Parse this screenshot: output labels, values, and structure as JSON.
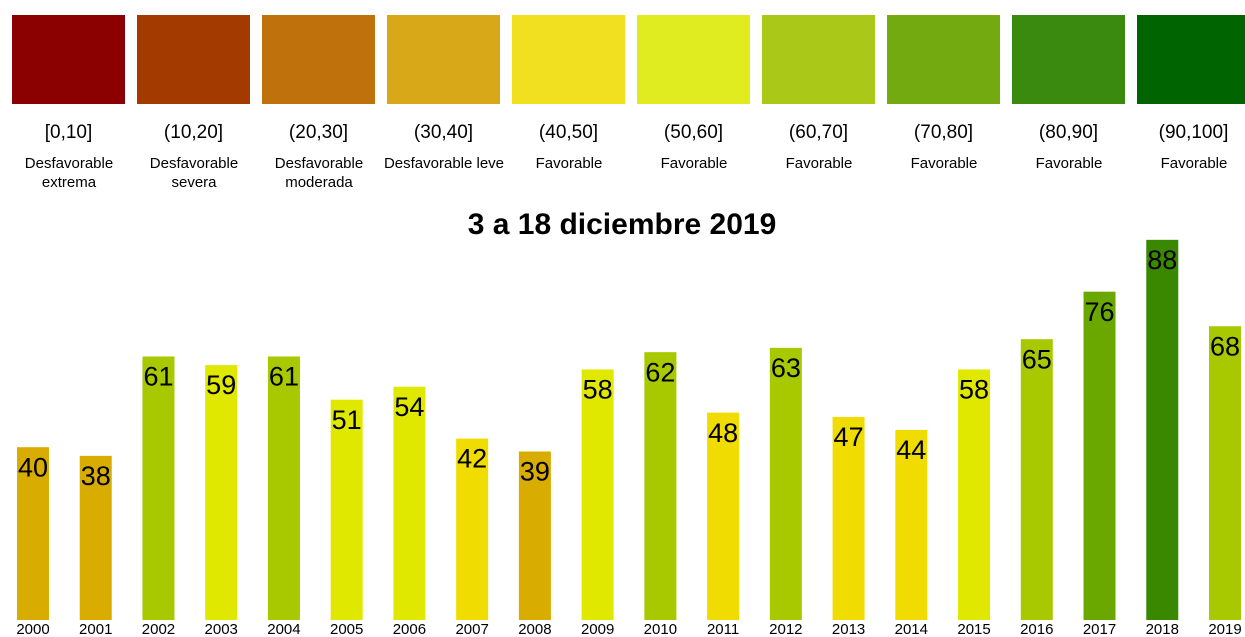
{
  "chart_data": {
    "type": "bar",
    "title": "3 a 18 diciembre 2019",
    "legend_bins": [
      {
        "range": "[0,10]",
        "text": "Desfavorable extrema",
        "color": "#8b0000"
      },
      {
        "range": "(10,20]",
        "text": "Desfavorable severa",
        "color": "#a33a00"
      },
      {
        "range": "(20,30]",
        "text": "Desfavorable moderada",
        "color": "#bf720c"
      },
      {
        "range": "(30,40]",
        "text": "Desfavorable leve",
        "color": "#d8a818"
      },
      {
        "range": "(40,50]",
        "text": "Favorable",
        "color": "#f0e020"
      },
      {
        "range": "(50,60]",
        "text": "Favorable",
        "color": "#e0ec20"
      },
      {
        "range": "(60,70]",
        "text": "Favorable",
        "color": "#aac818"
      },
      {
        "range": "(70,80]",
        "text": "Favorable",
        "color": "#72aa10"
      },
      {
        "range": "(80,90]",
        "text": "Favorable",
        "color": "#3a8a10"
      },
      {
        "range": "(90,100]",
        "text": "Favorable",
        "color": "#006400"
      }
    ],
    "categories": [
      "2000",
      "2001",
      "2002",
      "2003",
      "2004",
      "2005",
      "2006",
      "2007",
      "2008",
      "2009",
      "2010",
      "2011",
      "2012",
      "2013",
      "2014",
      "2015",
      "2016",
      "2017",
      "2018",
      "2019"
    ],
    "values": [
      40,
      38,
      61,
      59,
      61,
      51,
      54,
      42,
      39,
      58,
      62,
      48,
      63,
      47,
      44,
      58,
      65,
      76,
      88,
      68
    ],
    "colors": [
      "#d8ac00",
      "#d8ac00",
      "#a8c800",
      "#e0e800",
      "#a8c800",
      "#e0e800",
      "#e0e800",
      "#f0dc00",
      "#d8ac00",
      "#e0e800",
      "#a8c800",
      "#f0dc00",
      "#a8c800",
      "#f0dc00",
      "#f0dc00",
      "#e0e800",
      "#a8c800",
      "#6aa800",
      "#3a8800",
      "#a8c800"
    ],
    "ylim": [
      0,
      100
    ]
  }
}
